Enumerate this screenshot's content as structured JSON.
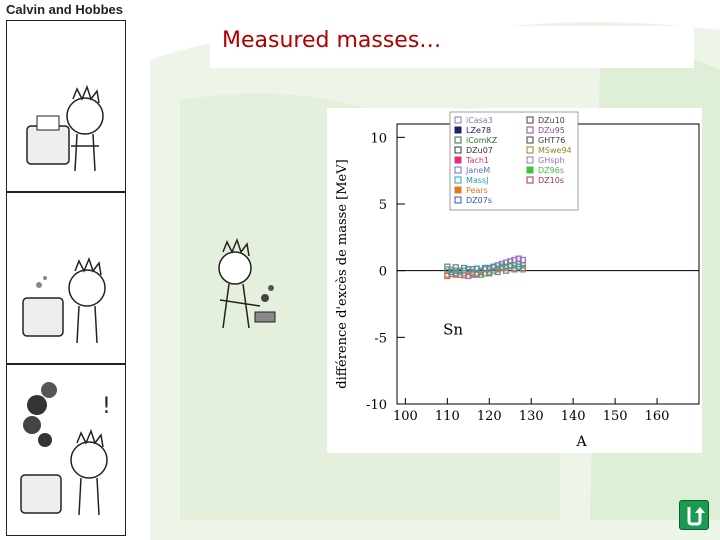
{
  "slide": {
    "title": "Measured masses…",
    "comic_title": "Calvin and Hobbes"
  },
  "chart_data": {
    "type": "scatter",
    "ylabel": "différence d'excès de masse [MeV]",
    "xlabel": "A",
    "annotation": "Sn",
    "xlim": [
      98,
      170
    ],
    "ylim": [
      -10,
      11
    ],
    "xticks": [
      100,
      110,
      120,
      130,
      140,
      150,
      160
    ],
    "yticks": [
      10,
      5,
      0,
      -5,
      -10
    ],
    "legend": [
      "iCasa3",
      "LZe78",
      "iComKZ",
      "DZu07",
      "Tach1",
      "JaneM",
      "MassJ",
      "Pears",
      "DZ07s",
      "DZu10",
      "DZu95",
      "GHT76",
      "MSwe94",
      "GHsph",
      "DZ96s",
      "DZ10s"
    ],
    "legend_colors": [
      "#7f7f9f",
      "#1f1f6f",
      "#2f6f2f",
      "#333333",
      "#e03070",
      "#6070c0",
      "#20a0c0",
      "#e07820",
      "#3050c0",
      "#404040",
      "#a04090",
      "#404040",
      "#a08020",
      "#a070c0",
      "#40c040",
      "#a03050"
    ],
    "legend_markers": [
      "circle",
      "square",
      "triangle",
      "xsquare",
      "xsquare",
      "triangle",
      "circle",
      "square",
      "diamond",
      "triangle",
      "triangle-down",
      "circle-dot",
      "xsquare",
      "xsquare",
      "square",
      "circle-open"
    ],
    "grid": false,
    "zero_line": true,
    "series": [
      {
        "color": "#40c040",
        "points": [
          [
            110,
            0.1
          ],
          [
            111,
            0.05
          ],
          [
            112,
            0.0
          ],
          [
            113,
            -0.1
          ],
          [
            114,
            0.0
          ],
          [
            115,
            -0.1
          ],
          [
            116,
            -0.2
          ],
          [
            117,
            -0.3
          ],
          [
            118,
            -0.3
          ],
          [
            119,
            -0.2
          ],
          [
            120,
            -0.1
          ],
          [
            121,
            0.0
          ],
          [
            122,
            0.1
          ],
          [
            123,
            0.2
          ],
          [
            124,
            0.3
          ],
          [
            125,
            0.4
          ],
          [
            126,
            0.4
          ],
          [
            127,
            0.5
          ],
          [
            128,
            0.4
          ]
        ]
      },
      {
        "color": "#a070c0",
        "points": [
          [
            110,
            -0.3
          ],
          [
            111,
            -0.25
          ],
          [
            112,
            -0.2
          ],
          [
            113,
            -0.3
          ],
          [
            114,
            -0.35
          ],
          [
            115,
            -0.4
          ],
          [
            116,
            -0.3
          ],
          [
            117,
            -0.2
          ],
          [
            118,
            -0.1
          ],
          [
            119,
            0.1
          ],
          [
            120,
            0.2
          ],
          [
            121,
            0.3
          ],
          [
            122,
            0.4
          ],
          [
            123,
            0.5
          ],
          [
            124,
            0.6
          ],
          [
            125,
            0.7
          ],
          [
            126,
            0.8
          ],
          [
            127,
            0.9
          ],
          [
            128,
            0.8
          ]
        ]
      },
      {
        "color": "#e07820",
        "points": [
          [
            110,
            -0.4
          ],
          [
            112,
            -0.3
          ],
          [
            114,
            -0.2
          ],
          [
            116,
            -0.1
          ],
          [
            118,
            0.0
          ],
          [
            120,
            0.1
          ],
          [
            122,
            0.15
          ],
          [
            124,
            0.2
          ],
          [
            126,
            0.2
          ],
          [
            128,
            0.1
          ]
        ]
      },
      {
        "color": "#20a0c0",
        "points": [
          [
            111,
            -0.1
          ],
          [
            113,
            0.0
          ],
          [
            115,
            0.1
          ],
          [
            117,
            0.15
          ],
          [
            119,
            0.2
          ],
          [
            121,
            0.25
          ],
          [
            123,
            0.3
          ],
          [
            125,
            0.35
          ],
          [
            127,
            0.3
          ]
        ]
      },
      {
        "color": "#7f7f9f",
        "points": [
          [
            110,
            0.3
          ],
          [
            112,
            0.25
          ],
          [
            114,
            0.2
          ],
          [
            116,
            0.1
          ],
          [
            118,
            -0.1
          ],
          [
            120,
            -0.2
          ],
          [
            122,
            -0.1
          ],
          [
            124,
            0.0
          ],
          [
            126,
            0.1
          ],
          [
            128,
            0.2
          ]
        ]
      }
    ]
  }
}
